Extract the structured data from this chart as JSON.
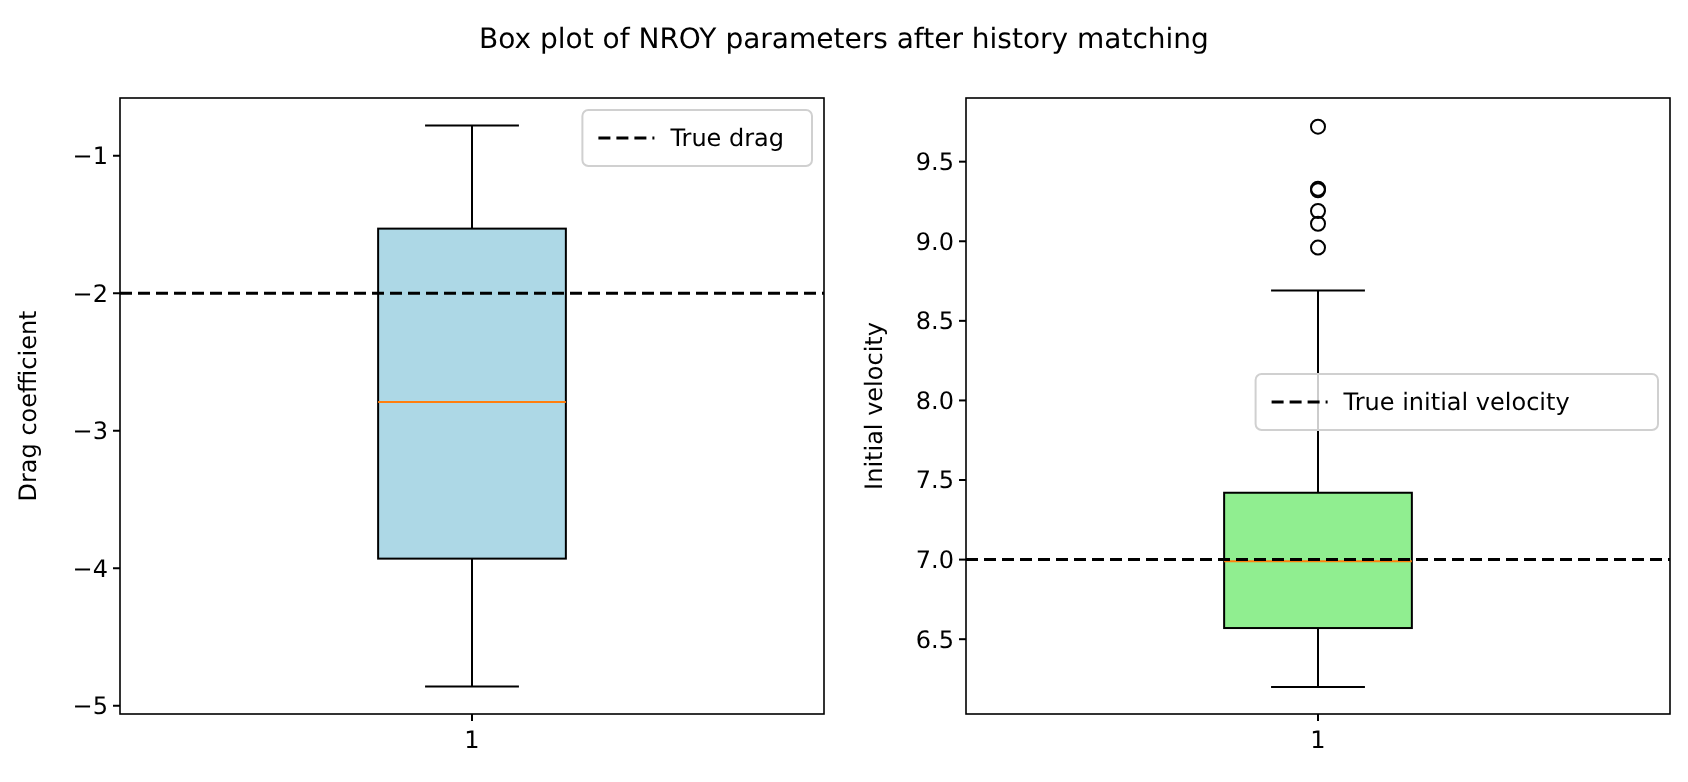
{
  "chart_data": [
    {
      "type": "box",
      "title": "Box plot of NROY parameters after history matching",
      "ylabel": "Drag coefficient",
      "categories": [
        "1"
      ],
      "color": "#add8e6",
      "boxes": [
        {
          "low": -4.86,
          "q1": -3.93,
          "median": -2.79,
          "q3": -1.53,
          "high": -0.78
        }
      ],
      "ylim": [
        -5.06,
        -0.58
      ],
      "yticks": [
        {
          "value": -5,
          "label": "−5"
        },
        {
          "value": -4,
          "label": "−4"
        },
        {
          "value": -3,
          "label": "−3"
        },
        {
          "value": -2,
          "label": "−2"
        },
        {
          "value": -1,
          "label": "−1"
        }
      ],
      "ref_lines": [
        {
          "axis": "y",
          "value": -2,
          "label": "True drag",
          "color": "#000000",
          "line_style": "dashed"
        }
      ],
      "legend": "top right",
      "grid": false
    },
    {
      "type": "box",
      "ylabel": "Initial velocity",
      "categories": [
        "1"
      ],
      "color": "#90ee90",
      "boxes": [
        {
          "low": 6.2,
          "q1": 6.57,
          "median": 6.99,
          "q3": 7.42,
          "high": 8.69,
          "outliers": [
            9.72,
            9.33,
            9.32,
            9.19,
            9.11,
            8.96
          ]
        }
      ],
      "ylim": [
        6.03,
        9.9
      ],
      "yticks": [
        {
          "value": 6.5,
          "label": "6.5"
        },
        {
          "value": 7,
          "label": "7.0"
        },
        {
          "value": 7.5,
          "label": "7.5"
        },
        {
          "value": 8,
          "label": "8.0"
        },
        {
          "value": 8.5,
          "label": "8.5"
        },
        {
          "value": 9,
          "label": "9.0"
        },
        {
          "value": 9.5,
          "label": "9.5"
        }
      ],
      "ref_lines": [
        {
          "axis": "y",
          "value": 7,
          "label": "True initial velocity",
          "color": "#000000",
          "line_style": "dashed"
        }
      ],
      "legend": "right",
      "grid": false
    }
  ]
}
